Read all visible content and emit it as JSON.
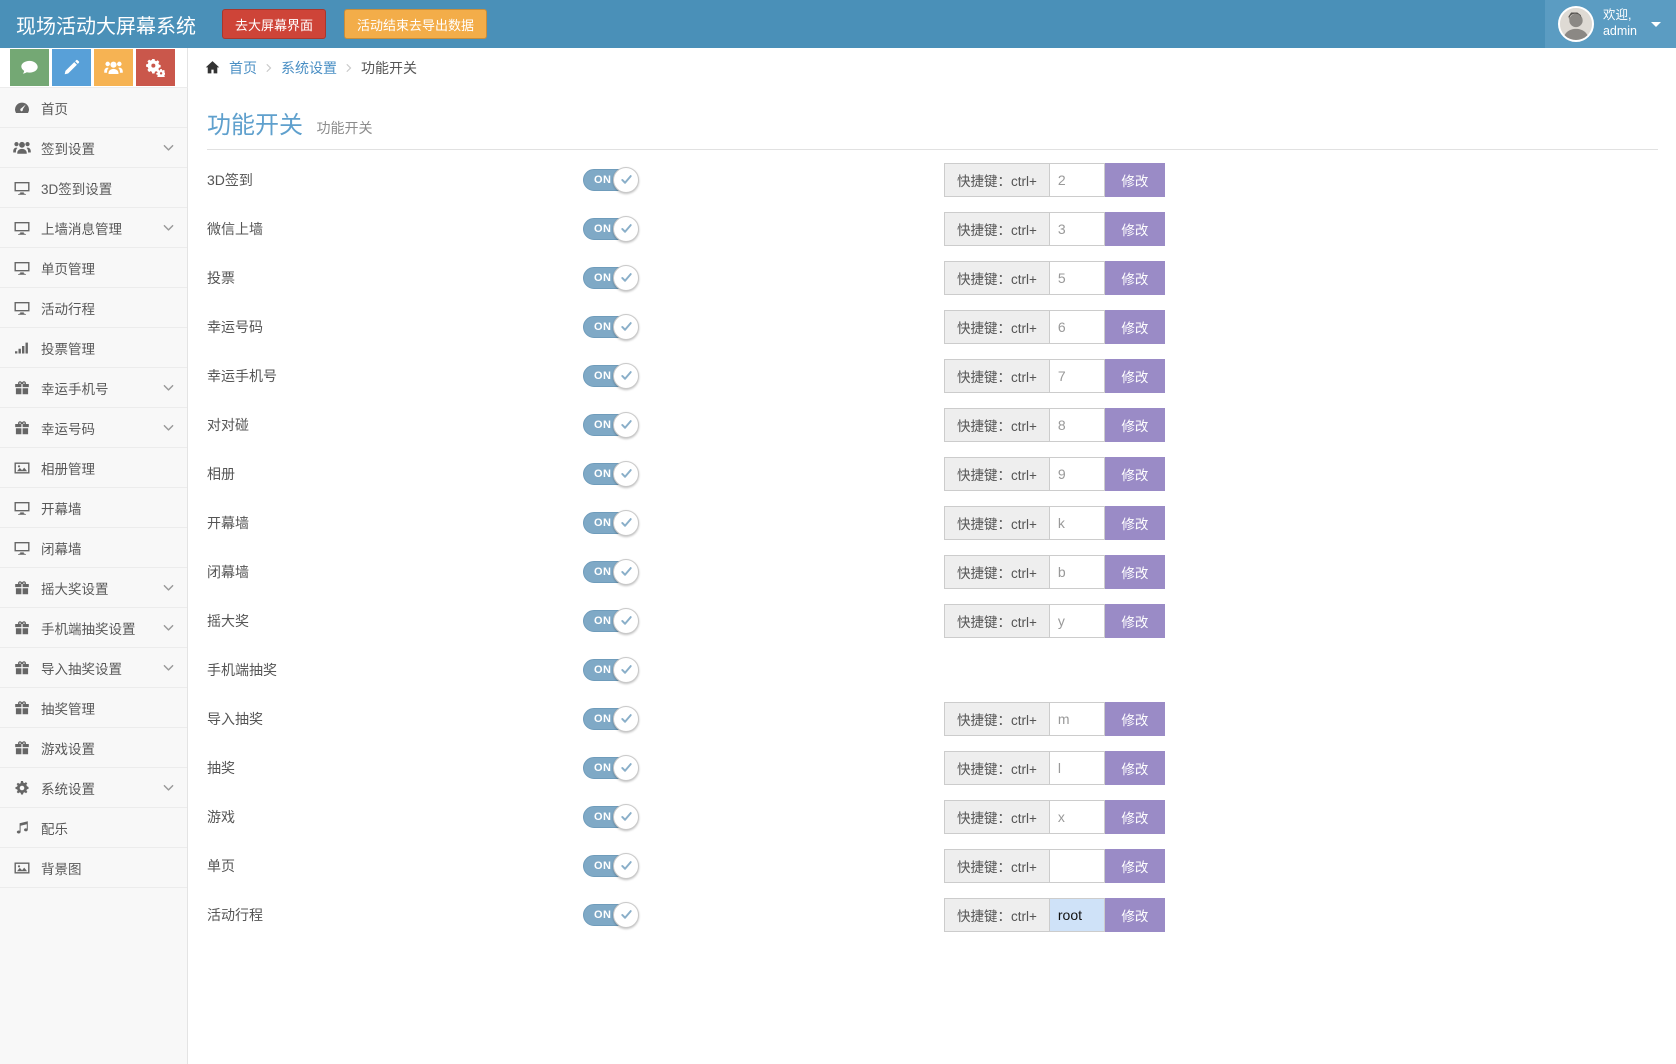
{
  "header": {
    "brand": "现场活动大屏幕系统",
    "big_screen_button": "去大屏幕界面",
    "export_button": "活动结束去导出数据",
    "welcome_line1": "欢迎,",
    "welcome_line2": "admin"
  },
  "quickbar": [
    {
      "icon": "chat",
      "color": "#74a874"
    },
    {
      "icon": "pencil",
      "color": "#58a0d8"
    },
    {
      "icon": "users",
      "color": "#f6b353"
    },
    {
      "icon": "cogs",
      "color": "#ca574b"
    }
  ],
  "breadcrumb": {
    "home": "首页",
    "items": [
      "系统设置",
      "功能开关"
    ]
  },
  "sidebar": [
    {
      "label": "首页",
      "icon": "dashboard",
      "chevron": false
    },
    {
      "label": "签到设置",
      "icon": "users",
      "chevron": true
    },
    {
      "label": "3D签到设置",
      "icon": "monitor",
      "chevron": false
    },
    {
      "label": "上墙消息管理",
      "icon": "monitor",
      "chevron": true
    },
    {
      "label": "单页管理",
      "icon": "monitor",
      "chevron": false
    },
    {
      "label": "活动行程",
      "icon": "monitor",
      "chevron": false
    },
    {
      "label": "投票管理",
      "icon": "chart",
      "chevron": false
    },
    {
      "label": "幸运手机号",
      "icon": "gift",
      "chevron": true
    },
    {
      "label": "幸运号码",
      "icon": "gift",
      "chevron": true
    },
    {
      "label": "相册管理",
      "icon": "image",
      "chevron": false
    },
    {
      "label": "开幕墙",
      "icon": "monitor",
      "chevron": false
    },
    {
      "label": "闭幕墙",
      "icon": "monitor",
      "chevron": false
    },
    {
      "label": "摇大奖设置",
      "icon": "gift",
      "chevron": true
    },
    {
      "label": "手机端抽奖设置",
      "icon": "gift",
      "chevron": true
    },
    {
      "label": "导入抽奖设置",
      "icon": "gift",
      "chevron": true
    },
    {
      "label": "抽奖管理",
      "icon": "gift",
      "chevron": false
    },
    {
      "label": "游戏设置",
      "icon": "gift",
      "chevron": false
    },
    {
      "label": "系统设置",
      "icon": "gear",
      "chevron": true
    },
    {
      "label": "配乐",
      "icon": "music",
      "chevron": false
    },
    {
      "label": "背景图",
      "icon": "image",
      "chevron": false
    }
  ],
  "page": {
    "title": "功能开关",
    "subtitle": "功能开关"
  },
  "shortcut_prefix": "快捷键：ctrl+",
  "modify_label": "修改",
  "toggle_on_label": "ON",
  "features": [
    {
      "label": "3D签到",
      "on": true,
      "has_shortcut": true,
      "shortcut": "2",
      "highlighted": false
    },
    {
      "label": "微信上墙",
      "on": true,
      "has_shortcut": true,
      "shortcut": "3",
      "highlighted": false
    },
    {
      "label": "投票",
      "on": true,
      "has_shortcut": true,
      "shortcut": "5",
      "highlighted": false
    },
    {
      "label": "幸运号码",
      "on": true,
      "has_shortcut": true,
      "shortcut": "6",
      "highlighted": false
    },
    {
      "label": "幸运手机号",
      "on": true,
      "has_shortcut": true,
      "shortcut": "7",
      "highlighted": false
    },
    {
      "label": "对对碰",
      "on": true,
      "has_shortcut": true,
      "shortcut": "8",
      "highlighted": false
    },
    {
      "label": "相册",
      "on": true,
      "has_shortcut": true,
      "shortcut": "9",
      "highlighted": false
    },
    {
      "label": "开幕墙",
      "on": true,
      "has_shortcut": true,
      "shortcut": "k",
      "highlighted": false
    },
    {
      "label": "闭幕墙",
      "on": true,
      "has_shortcut": true,
      "shortcut": "b",
      "highlighted": false
    },
    {
      "label": "摇大奖",
      "on": true,
      "has_shortcut": true,
      "shortcut": "y",
      "highlighted": false
    },
    {
      "label": "手机端抽奖",
      "on": true,
      "has_shortcut": false,
      "shortcut": "",
      "highlighted": false
    },
    {
      "label": "导入抽奖",
      "on": true,
      "has_shortcut": true,
      "shortcut": "m",
      "highlighted": false
    },
    {
      "label": "抽奖",
      "on": true,
      "has_shortcut": true,
      "shortcut": "l",
      "highlighted": false
    },
    {
      "label": "游戏",
      "on": true,
      "has_shortcut": true,
      "shortcut": "x",
      "highlighted": false
    },
    {
      "label": "单页",
      "on": true,
      "has_shortcut": true,
      "shortcut": "",
      "highlighted": false
    },
    {
      "label": "活动行程",
      "on": true,
      "has_shortcut": true,
      "shortcut": "root",
      "highlighted": true
    }
  ],
  "colors": {
    "header_blue": "#4a90b8",
    "userbox_blue": "#5b9cc2",
    "title_blue": "#5fa0cd",
    "link_blue": "#4a8fc4",
    "toggle_blue": "#7fa9c6",
    "modify_purple": "#9a8bc6",
    "danger_red": "#ce4438",
    "warning_orange": "#f3ad49",
    "highlight_input": "#cfe2f8"
  }
}
